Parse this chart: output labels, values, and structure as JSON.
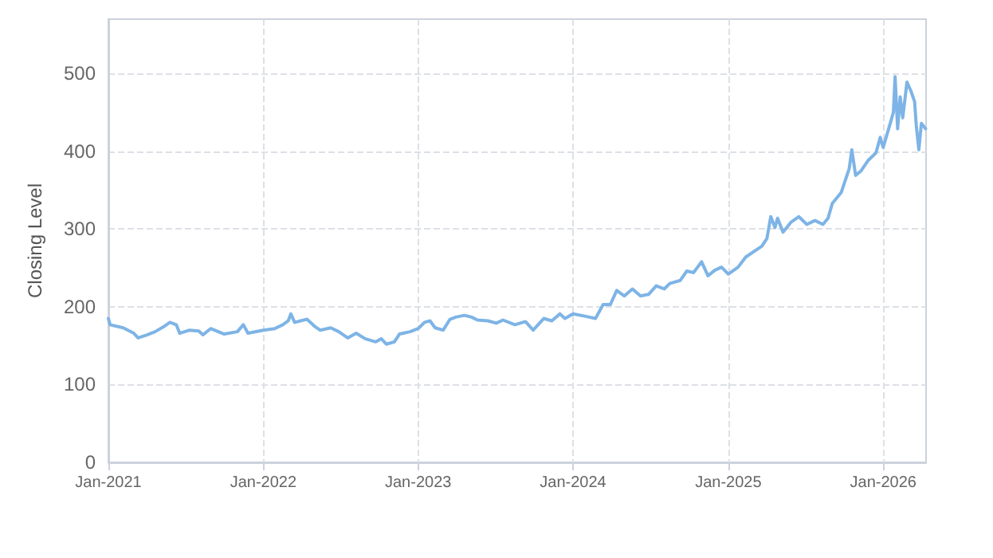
{
  "chart_data": {
    "type": "line",
    "ylabel": "Closing Level",
    "grid": true,
    "marker": "none",
    "line_style": "solid",
    "xlim": [
      "2021-01-01",
      "2026-04-12"
    ],
    "xticks": [
      {
        "value": "2021-01-01",
        "label": "Jan-2021"
      },
      {
        "value": "2022-01-01",
        "label": "Jan-2022"
      },
      {
        "value": "2023-01-01",
        "label": "Jan-2023"
      },
      {
        "value": "2024-01-01",
        "label": "Jan-2024"
      },
      {
        "value": "2025-01-01",
        "label": "Jan-2025"
      },
      {
        "value": "2026-01-01",
        "label": "Jan-2026"
      }
    ],
    "ylim": [
      0,
      570
    ],
    "yticks": [
      0,
      100,
      200,
      300,
      400,
      500
    ],
    "x": [
      "2021-01-01",
      "2021-01-05",
      "2021-02-05",
      "2021-03-02",
      "2021-03-12",
      "2021-04-02",
      "2021-04-21",
      "2021-05-10",
      "2021-05-26",
      "2021-06-10",
      "2021-06-18",
      "2021-07-11",
      "2021-08-02",
      "2021-08-12",
      "2021-08-30",
      "2021-10-01",
      "2021-11-01",
      "2021-11-15",
      "2021-11-26",
      "2022-01-01",
      "2022-01-28",
      "2022-02-16",
      "2022-03-01",
      "2022-03-07",
      "2022-03-16",
      "2022-04-14",
      "2022-05-02",
      "2022-05-15",
      "2022-06-09",
      "2022-06-28",
      "2022-07-19",
      "2022-08-08",
      "2022-08-29",
      "2022-09-23",
      "2022-10-06",
      "2022-10-18",
      "2022-11-06",
      "2022-11-18",
      "2022-12-13",
      "2023-01-01",
      "2023-01-16",
      "2023-01-29",
      "2023-02-10",
      "2023-03-01",
      "2023-03-17",
      "2023-04-01",
      "2023-04-20",
      "2023-05-06",
      "2023-05-21",
      "2023-06-15",
      "2023-07-04",
      "2023-07-20",
      "2023-08-17",
      "2023-09-11",
      "2023-09-29",
      "2023-10-24",
      "2023-11-12",
      "2023-12-01",
      "2023-12-13",
      "2024-01-01",
      "2024-01-29",
      "2024-02-23",
      "2024-03-12",
      "2024-03-29",
      "2024-04-13",
      "2024-05-01",
      "2024-05-20",
      "2024-06-08",
      "2024-06-27",
      "2024-07-15",
      "2024-08-03",
      "2024-08-16",
      "2024-09-10",
      "2024-09-25",
      "2024-10-11",
      "2024-10-30",
      "2024-11-14",
      "2024-11-30",
      "2024-12-16",
      "2025-01-01",
      "2025-01-24",
      "2025-02-11",
      "2025-03-02",
      "2025-03-21",
      "2025-04-02",
      "2025-04-11",
      "2025-04-21",
      "2025-04-27",
      "2025-05-10",
      "2025-05-29",
      "2025-06-16",
      "2025-07-05",
      "2025-07-24",
      "2025-08-12",
      "2025-08-24",
      "2025-09-03",
      "2025-09-24",
      "2025-10-13",
      "2025-10-19",
      "2025-10-28",
      "2025-11-10",
      "2025-11-26",
      "2025-12-15",
      "2025-12-25",
      "2026-01-01",
      "2026-01-16",
      "2026-01-25",
      "2026-01-29",
      "2026-02-04",
      "2026-02-10",
      "2026-02-16",
      "2026-02-26",
      "2026-03-07",
      "2026-03-16",
      "2026-03-20",
      "2026-03-26",
      "2026-04-01",
      "2026-04-11"
    ],
    "series": [
      {
        "color": "#7eb4e6",
        "values": [
          185,
          177,
          173,
          166,
          160,
          164,
          168,
          174,
          180,
          177,
          166,
          170,
          169,
          164,
          172,
          165,
          168,
          177,
          166,
          170,
          172,
          177,
          182,
          191,
          180,
          184,
          175,
          170,
          173,
          168,
          160,
          166,
          159,
          155,
          159,
          152,
          155,
          165,
          168,
          172,
          180,
          182,
          173,
          170,
          184,
          187,
          189,
          187,
          183,
          182,
          179,
          183,
          177,
          181,
          170,
          185,
          182,
          191,
          185,
          191,
          188,
          185,
          203,
          203,
          221,
          214,
          223,
          214,
          216,
          227,
          223,
          230,
          234,
          246,
          244,
          258,
          240,
          247,
          251,
          242,
          251,
          264,
          271,
          278,
          288,
          316,
          302,
          314,
          296,
          309,
          316,
          306,
          311,
          306,
          314,
          333,
          347,
          378,
          402,
          369,
          375,
          388,
          398,
          418,
          405,
          433,
          450,
          496,
          429,
          470,
          443,
          489,
          478,
          464,
          433,
          402,
          436,
          429
        ]
      }
    ]
  }
}
